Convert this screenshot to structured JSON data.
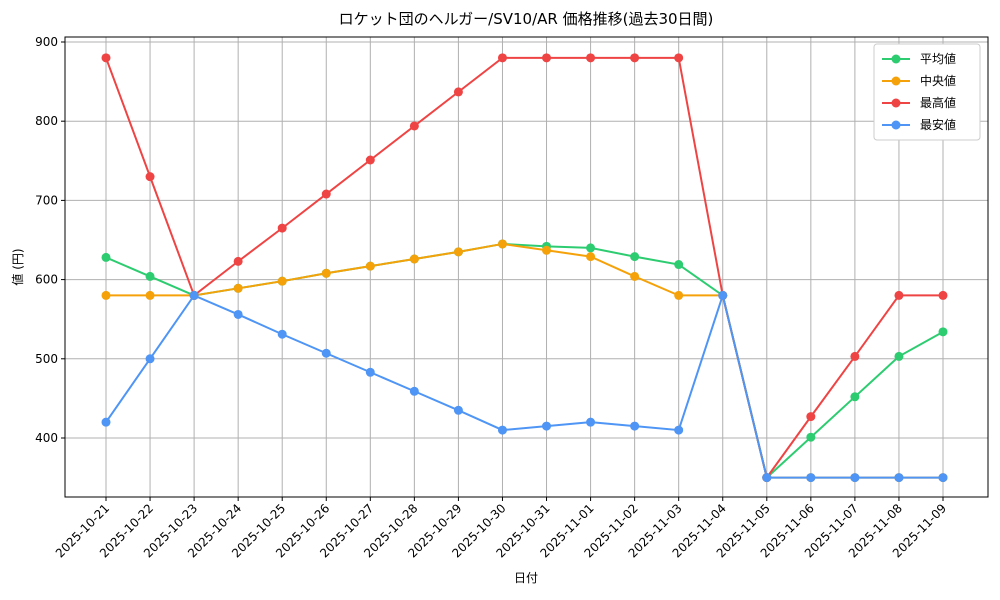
{
  "chart_data": {
    "type": "line",
    "title": "ロケット団のヘルガー/SV10/AR 価格推移(過去30日間)",
    "x_label": "日付",
    "y_label": "値 (円)",
    "categories": [
      "2025-10-21",
      "2025-10-22",
      "2025-10-23",
      "2025-10-24",
      "2025-10-25",
      "2025-10-26",
      "2025-10-27",
      "2025-10-28",
      "2025-10-29",
      "2025-10-30",
      "2025-10-31",
      "2025-11-01",
      "2025-11-02",
      "2025-11-03",
      "2025-11-04",
      "2025-11-05",
      "2025-11-06",
      "2025-11-07",
      "2025-11-08",
      "2025-11-09"
    ],
    "series": [
      {
        "name": "平均値",
        "color": "#2ecc71",
        "values": [
          628,
          604,
          580,
          589,
          598,
          608,
          617,
          626,
          635,
          645,
          642,
          640,
          629,
          619,
          580,
          350,
          401,
          452,
          503,
          534
        ]
      },
      {
        "name": "中央値",
        "color": "#f5a20a",
        "values": [
          580,
          580,
          580,
          589,
          598,
          608,
          617,
          626,
          635,
          645,
          637,
          629,
          604,
          580,
          580,
          350,
          350,
          350,
          350,
          350
        ]
      },
      {
        "name": "最高値",
        "color": "#ef4444",
        "values": [
          880,
          730,
          580,
          623,
          665,
          708,
          751,
          794,
          837,
          880,
          880,
          880,
          880,
          880,
          580,
          350,
          427,
          503,
          580,
          580
        ]
      },
      {
        "name": "最安値",
        "color": "#4e95f5",
        "values": [
          420,
          500,
          580,
          556,
          531,
          507,
          483,
          459,
          435,
          410,
          415,
          420,
          415,
          410,
          580,
          350,
          350,
          350,
          350,
          350
        ]
      }
    ],
    "ylim": [
      325.5,
      906.3
    ],
    "yticks": [
      400,
      500,
      600,
      700,
      800,
      900
    ],
    "grid": true,
    "legend": "upper-right"
  }
}
